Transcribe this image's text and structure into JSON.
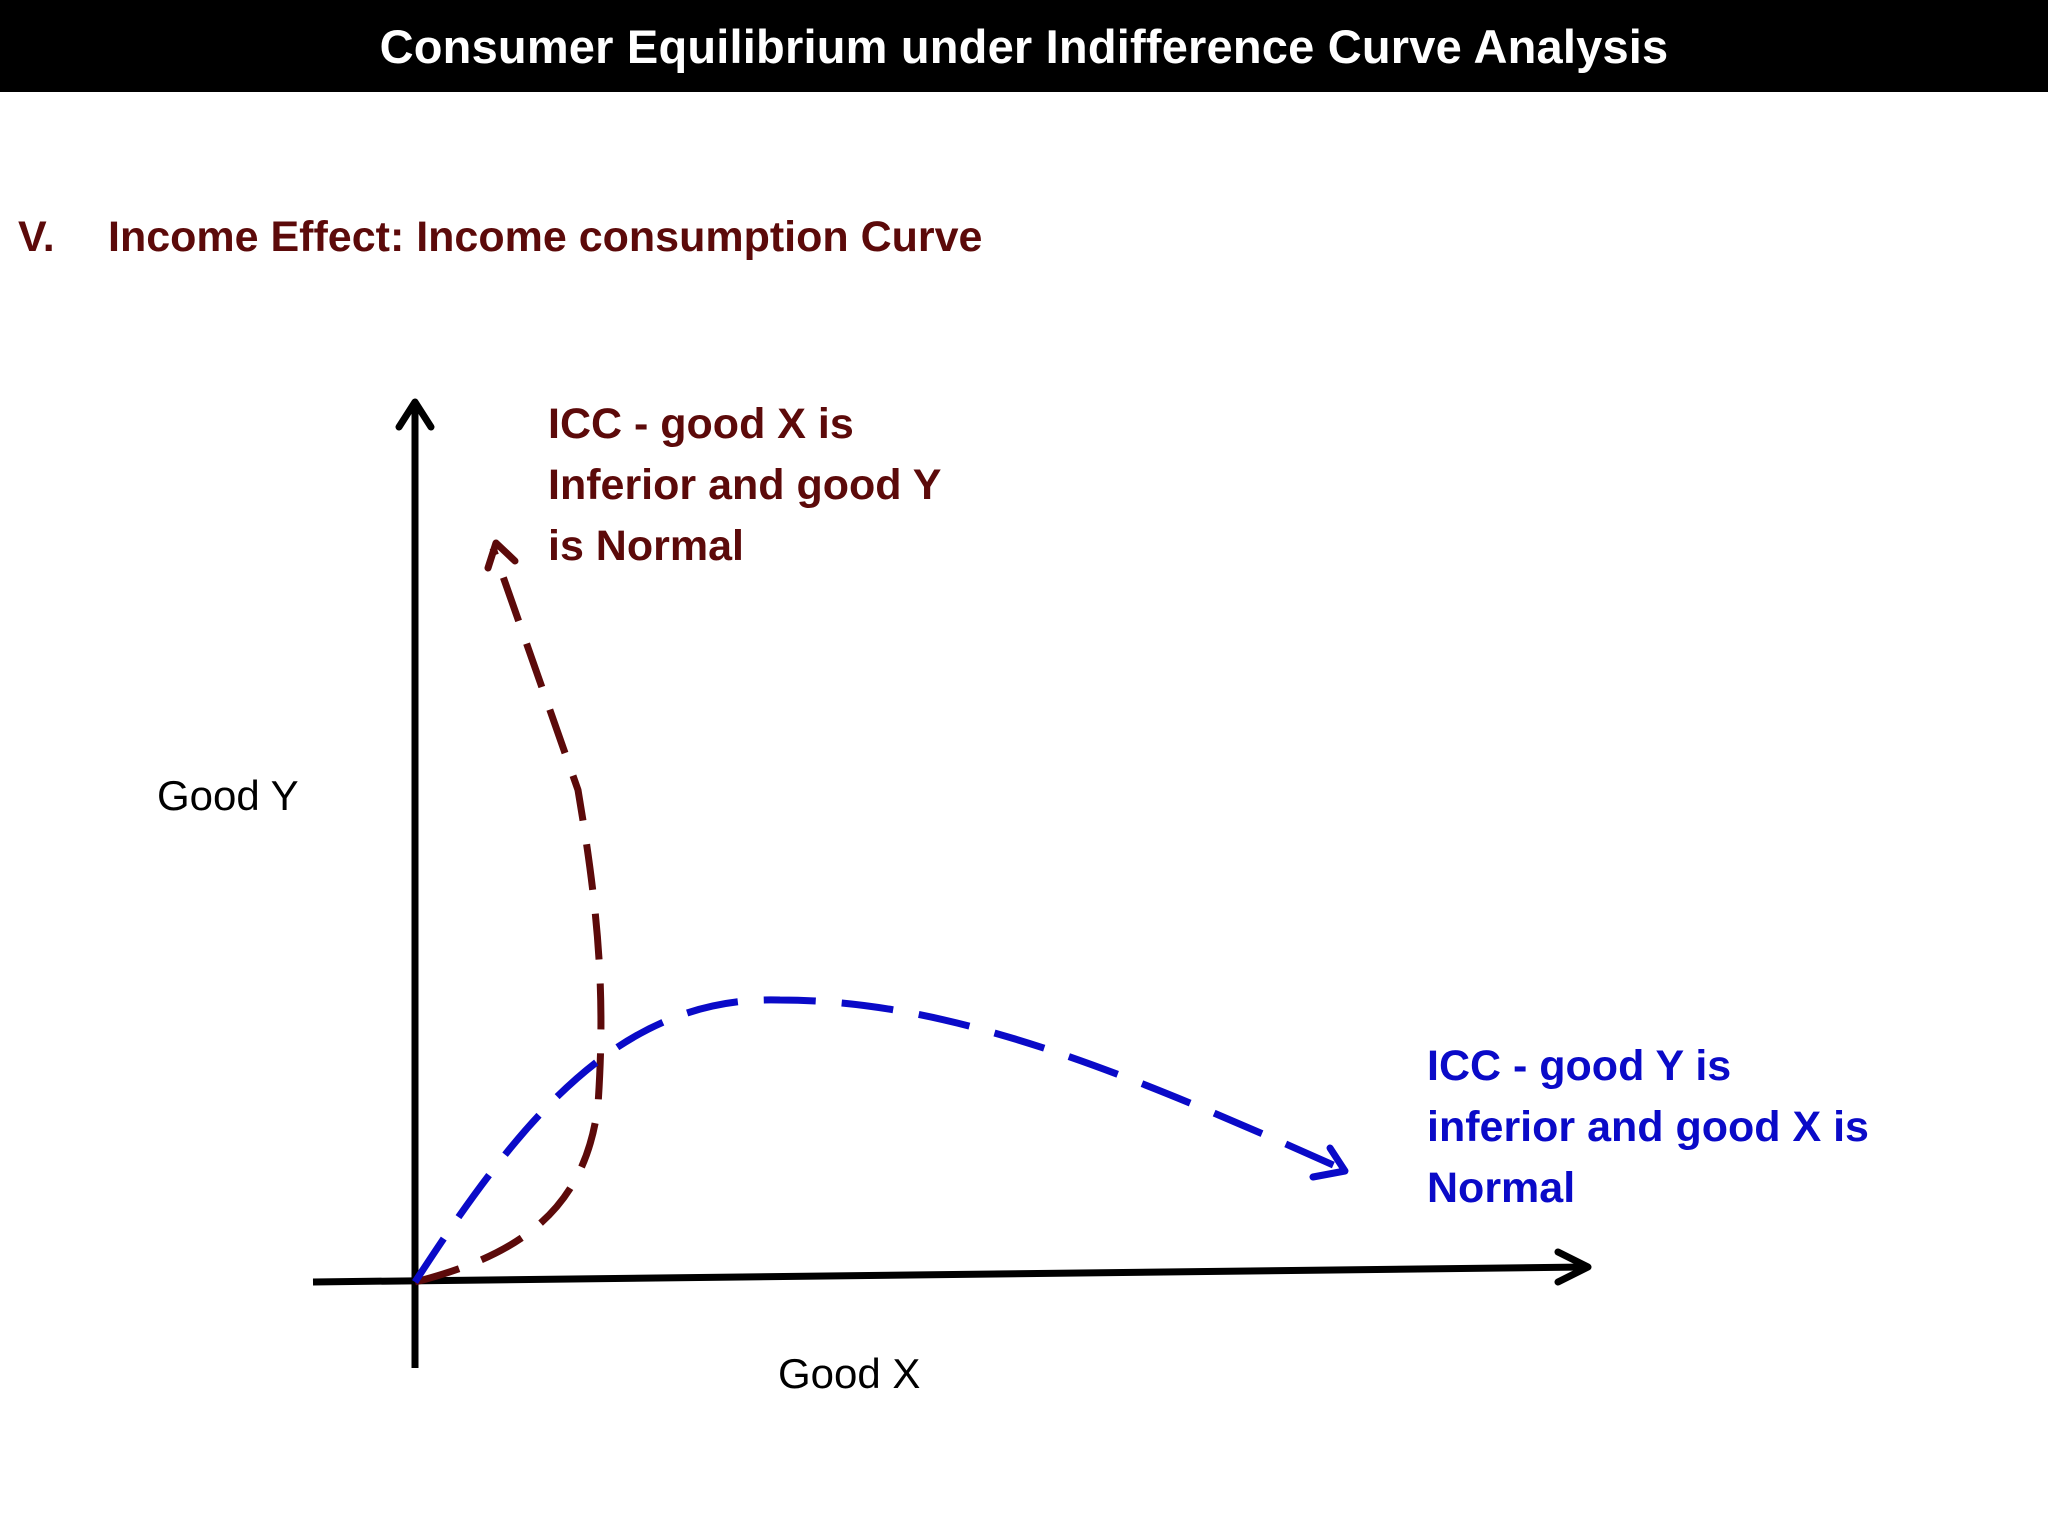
{
  "slide": {
    "title": "Consumer Equilibrium under Indifference Curve Analysis"
  },
  "section": {
    "number": "V.",
    "heading": "Income Effect: Income consumption Curve"
  },
  "diagram": {
    "y_axis_label": "Good Y",
    "x_axis_label": "Good X",
    "curves": [
      {
        "id": "icc-x-inferior",
        "color": "#5c0a0a",
        "style": "dashed",
        "label_lines": [
          "ICC - good X is",
          "Inferior  and good Y",
          "is Normal"
        ]
      },
      {
        "id": "icc-y-inferior",
        "color": "#0a0ac8",
        "style": "dashed",
        "label_lines": [
          "ICC - good Y is",
          "inferior and good X is",
          "Normal"
        ]
      }
    ]
  }
}
